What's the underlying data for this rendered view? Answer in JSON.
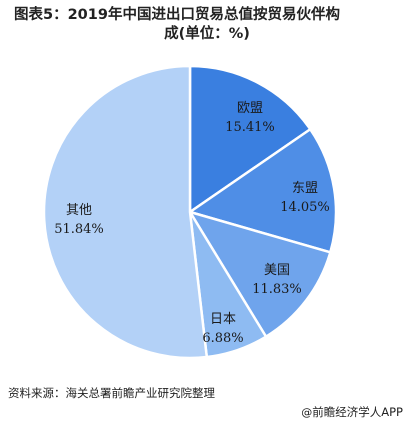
{
  "title_line1": "图表5：2019年中国进出口贸易总值按贸易伙伴构",
  "title_line2": "成(单位：%)",
  "source": "资料来源：海关总署前瞻产业研究院整理",
  "brand": "前瞻经济学人APP",
  "chart_data": {
    "type": "pie",
    "title": "图表5：2019年中国进出口贸易总值按贸易伙伴构成(单位：%)",
    "unit": "%",
    "slices": [
      {
        "label": "欧盟",
        "value": 15.41,
        "value_label": "15.41%",
        "color": "#3a7fe0"
      },
      {
        "label": "东盟",
        "value": 14.05,
        "value_label": "14.05%",
        "color": "#4f8ee6"
      },
      {
        "label": "美国",
        "value": 11.83,
        "value_label": "11.83%",
        "color": "#6fa4ec"
      },
      {
        "label": "日本",
        "value": 6.88,
        "value_label": "6.88%",
        "color": "#8ebbf2"
      },
      {
        "label": "其他",
        "value": 51.84,
        "value_label": "51.84%",
        "color": "#b3d1f7"
      }
    ]
  }
}
